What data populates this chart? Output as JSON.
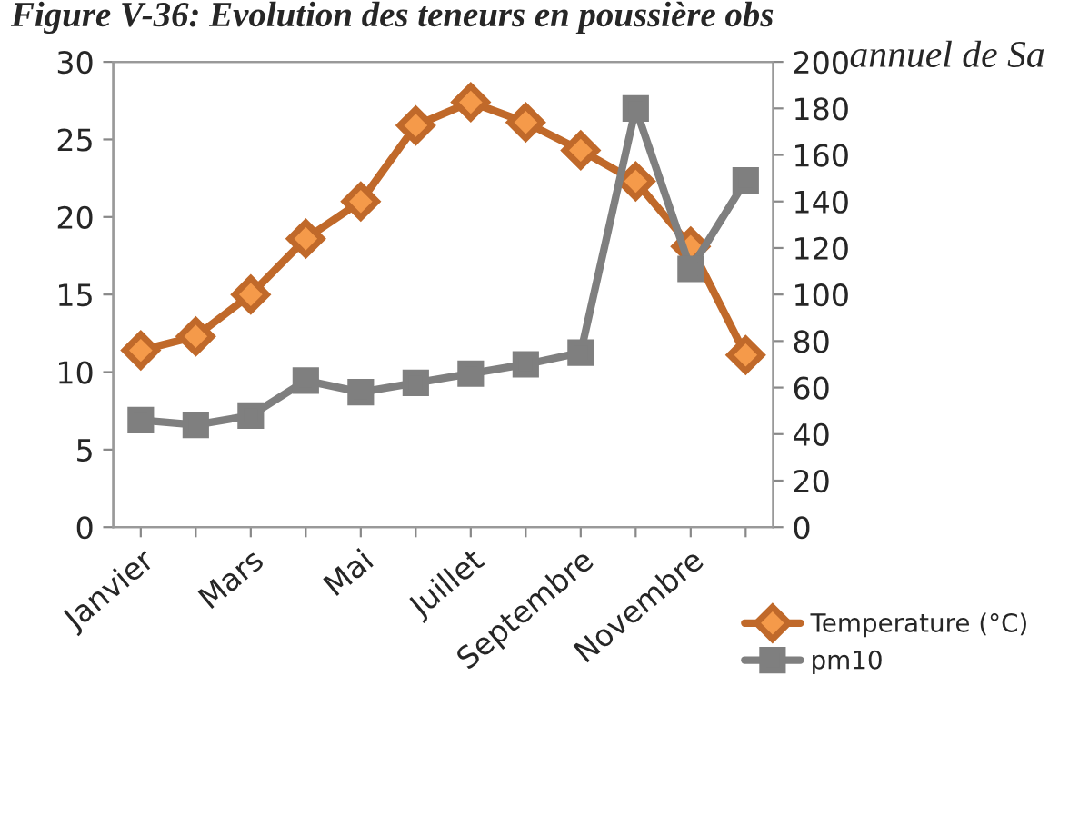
{
  "chart_data": {
    "type": "line",
    "title": "Figure V-36: Evolution des teneurs en poussière obs",
    "annotations": [
      "annuel de Sa"
    ],
    "categories": [
      "Janvier",
      null,
      "Mars",
      null,
      "Mai",
      null,
      "Juillet",
      null,
      "Septembre",
      null,
      "Novembre",
      null
    ],
    "series": [
      {
        "name": "Temperature (°C)",
        "color": "#c0692a",
        "marker": "diamond",
        "values": [
          11.4,
          12.3,
          15,
          18.6,
          21,
          25.9,
          27.4,
          26.1,
          24.3,
          22.3,
          18.1,
          11.1
        ]
      },
      {
        "name": "pm10",
        "color": "#7f7f7f",
        "marker": "square",
        "axis": "y2",
        "values": [
          46,
          44,
          48,
          63,
          58,
          62,
          66,
          70,
          75,
          180,
          111,
          149
        ]
      }
    ],
    "ylim": [
      0,
      30
    ],
    "yticks": [
      0,
      5,
      10,
      15,
      20,
      25,
      30
    ],
    "y2lim": [
      0,
      200
    ],
    "y2ticks": [
      0,
      20,
      40,
      60,
      80,
      100,
      120,
      140,
      160,
      180,
      200
    ],
    "grid": false,
    "legend": "right"
  }
}
